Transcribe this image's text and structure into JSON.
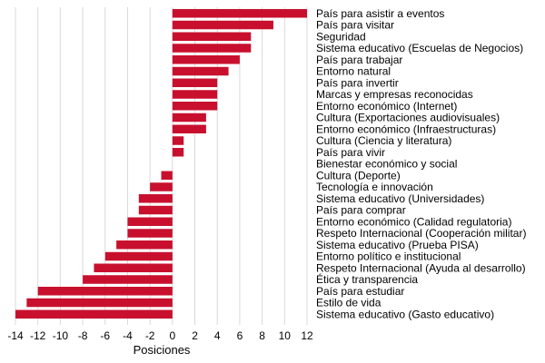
{
  "chart_data": {
    "type": "bar",
    "orientation": "horizontal",
    "title": "",
    "xlabel": "Posiciones",
    "ylabel": "",
    "xlim": [
      -14,
      12
    ],
    "xticks": [
      -14,
      -12,
      -10,
      -8,
      -6,
      -4,
      -2,
      0,
      2,
      4,
      6,
      8,
      10,
      12
    ],
    "grid": "vertical",
    "legend": "none",
    "bar_color": "#c8102e",
    "categories": [
      "País para asistir a eventos",
      "País para visitar",
      "Seguridad",
      "Sistema educativo (Escuelas de Negocios)",
      "País para trabajar",
      "Entorno natural",
      "País para invertir",
      "Marcas y empresas reconocidas",
      "Entorno económico (Internet)",
      "Cultura (Exportaciones audiovisuales)",
      "Entorno económico (Infraestructuras)",
      "Cultura (Ciencia y literatura)",
      "País para vivir",
      "Bienestar económico y social",
      "Cultura (Deporte)",
      "Tecnología e innovación",
      "Sistema educativo (Universidades)",
      "País para comprar",
      "Entorno económico (Calidad regulatoria)",
      "Respeto Internacional (Cooperación militar)",
      "Sistema educativo (Prueba PISA)",
      "Entorno político e institucional",
      "Respeto Internacional (Ayuda al desarrollo)",
      "Ética y transparencia",
      "País para estudiar",
      "Estilo de vida",
      "Sistema educativo (Gasto educativo)"
    ],
    "values": [
      12,
      9,
      7,
      7,
      6,
      5,
      4,
      4,
      4,
      3,
      3,
      1,
      1,
      0,
      -1,
      -2,
      -3,
      -3,
      -4,
      -4,
      -5,
      -6,
      -7,
      -8,
      -12,
      -13,
      -14
    ]
  }
}
